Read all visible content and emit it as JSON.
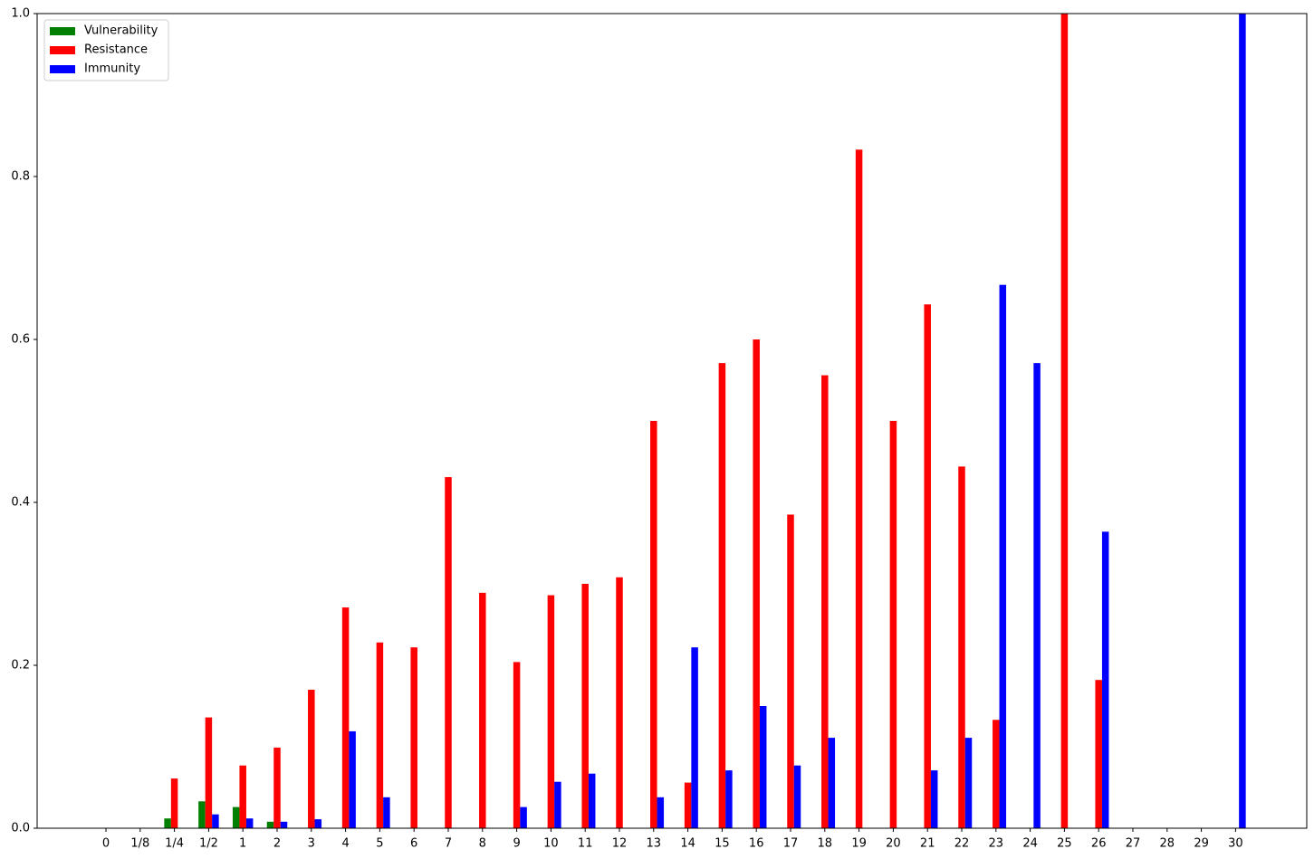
{
  "chart_data": {
    "type": "bar",
    "categories": [
      "0",
      "1/8",
      "1/4",
      "1/2",
      "1",
      "2",
      "3",
      "4",
      "5",
      "6",
      "7",
      "8",
      "9",
      "10",
      "11",
      "12",
      "13",
      "14",
      "15",
      "16",
      "17",
      "18",
      "19",
      "20",
      "21",
      "22",
      "23",
      "24",
      "25",
      "26",
      "27",
      "28",
      "29",
      "30"
    ],
    "series": [
      {
        "name": "Vulnerability",
        "color": "#008000",
        "values": [
          0,
          0,
          0.012,
          0.033,
          0.026,
          0.008,
          0,
          0,
          0,
          0,
          0,
          0,
          0,
          0,
          0,
          0,
          0,
          0,
          0,
          0,
          0,
          0,
          0,
          0,
          0,
          0,
          0,
          0,
          0,
          0,
          0,
          0,
          0,
          0
        ]
      },
      {
        "name": "Resistance",
        "color": "#ff0000",
        "values": [
          0,
          0,
          0.061,
          0.136,
          0.077,
          0.099,
          0.17,
          0.271,
          0.228,
          0.222,
          0.431,
          0.289,
          0.204,
          0.286,
          0.3,
          0.308,
          0.5,
          0.056,
          0.571,
          0.6,
          0.385,
          0.556,
          0.833,
          0.5,
          0.643,
          0.444,
          0.133,
          0,
          1.0,
          0.182,
          0,
          0,
          0,
          0
        ]
      },
      {
        "name": "Immunity",
        "color": "#0000ff",
        "values": [
          0,
          0,
          0,
          0.017,
          0.012,
          0.008,
          0.011,
          0.119,
          0.038,
          0,
          0,
          0,
          0.026,
          0.057,
          0.067,
          0,
          0.038,
          0.222,
          0.071,
          0.15,
          0.077,
          0.111,
          0,
          0,
          0.071,
          0.111,
          0.667,
          0.571,
          0,
          0.364,
          0,
          0,
          0,
          1.0
        ]
      }
    ],
    "ylim": [
      0,
      1
    ],
    "yticks": [
      {
        "value": 0,
        "label": "0.0"
      },
      0.2,
      0.4,
      0.6,
      0.8,
      {
        "value": 1,
        "label": "1.0"
      }
    ],
    "legend": "upper left"
  }
}
